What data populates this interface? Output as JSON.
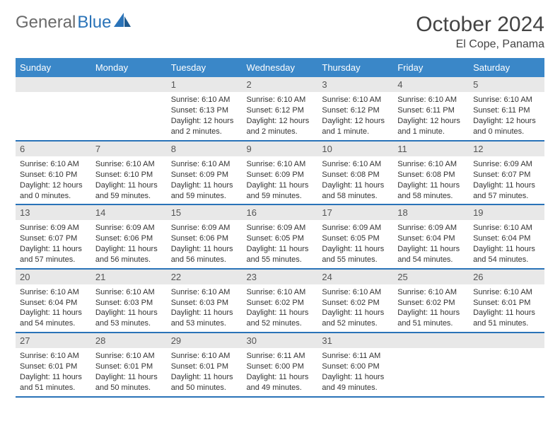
{
  "logo": {
    "part1": "General",
    "part2": "Blue"
  },
  "title": "October 2024",
  "location": "El Cope, Panama",
  "colors": {
    "header_bg": "#3a87c8",
    "header_text": "#ffffff",
    "daynum_bg": "#e8e8e8",
    "border": "#2a73b8",
    "body_text": "#333333",
    "logo_gray": "#6a6a6a",
    "logo_blue": "#2a73b8",
    "background": "#ffffff"
  },
  "typography": {
    "title_fontsize": 30,
    "location_fontsize": 16,
    "dayheader_fontsize": 13,
    "daynum_fontsize": 13,
    "body_fontsize": 11
  },
  "day_headers": [
    "Sunday",
    "Monday",
    "Tuesday",
    "Wednesday",
    "Thursday",
    "Friday",
    "Saturday"
  ],
  "weeks": [
    [
      {
        "n": "",
        "sr": "",
        "ss": "",
        "dl": ""
      },
      {
        "n": "",
        "sr": "",
        "ss": "",
        "dl": ""
      },
      {
        "n": "1",
        "sr": "Sunrise: 6:10 AM",
        "ss": "Sunset: 6:13 PM",
        "dl": "Daylight: 12 hours and 2 minutes."
      },
      {
        "n": "2",
        "sr": "Sunrise: 6:10 AM",
        "ss": "Sunset: 6:12 PM",
        "dl": "Daylight: 12 hours and 2 minutes."
      },
      {
        "n": "3",
        "sr": "Sunrise: 6:10 AM",
        "ss": "Sunset: 6:12 PM",
        "dl": "Daylight: 12 hours and 1 minute."
      },
      {
        "n": "4",
        "sr": "Sunrise: 6:10 AM",
        "ss": "Sunset: 6:11 PM",
        "dl": "Daylight: 12 hours and 1 minute."
      },
      {
        "n": "5",
        "sr": "Sunrise: 6:10 AM",
        "ss": "Sunset: 6:11 PM",
        "dl": "Daylight: 12 hours and 0 minutes."
      }
    ],
    [
      {
        "n": "6",
        "sr": "Sunrise: 6:10 AM",
        "ss": "Sunset: 6:10 PM",
        "dl": "Daylight: 12 hours and 0 minutes."
      },
      {
        "n": "7",
        "sr": "Sunrise: 6:10 AM",
        "ss": "Sunset: 6:10 PM",
        "dl": "Daylight: 11 hours and 59 minutes."
      },
      {
        "n": "8",
        "sr": "Sunrise: 6:10 AM",
        "ss": "Sunset: 6:09 PM",
        "dl": "Daylight: 11 hours and 59 minutes."
      },
      {
        "n": "9",
        "sr": "Sunrise: 6:10 AM",
        "ss": "Sunset: 6:09 PM",
        "dl": "Daylight: 11 hours and 59 minutes."
      },
      {
        "n": "10",
        "sr": "Sunrise: 6:10 AM",
        "ss": "Sunset: 6:08 PM",
        "dl": "Daylight: 11 hours and 58 minutes."
      },
      {
        "n": "11",
        "sr": "Sunrise: 6:10 AM",
        "ss": "Sunset: 6:08 PM",
        "dl": "Daylight: 11 hours and 58 minutes."
      },
      {
        "n": "12",
        "sr": "Sunrise: 6:09 AM",
        "ss": "Sunset: 6:07 PM",
        "dl": "Daylight: 11 hours and 57 minutes."
      }
    ],
    [
      {
        "n": "13",
        "sr": "Sunrise: 6:09 AM",
        "ss": "Sunset: 6:07 PM",
        "dl": "Daylight: 11 hours and 57 minutes."
      },
      {
        "n": "14",
        "sr": "Sunrise: 6:09 AM",
        "ss": "Sunset: 6:06 PM",
        "dl": "Daylight: 11 hours and 56 minutes."
      },
      {
        "n": "15",
        "sr": "Sunrise: 6:09 AM",
        "ss": "Sunset: 6:06 PM",
        "dl": "Daylight: 11 hours and 56 minutes."
      },
      {
        "n": "16",
        "sr": "Sunrise: 6:09 AM",
        "ss": "Sunset: 6:05 PM",
        "dl": "Daylight: 11 hours and 55 minutes."
      },
      {
        "n": "17",
        "sr": "Sunrise: 6:09 AM",
        "ss": "Sunset: 6:05 PM",
        "dl": "Daylight: 11 hours and 55 minutes."
      },
      {
        "n": "18",
        "sr": "Sunrise: 6:09 AM",
        "ss": "Sunset: 6:04 PM",
        "dl": "Daylight: 11 hours and 54 minutes."
      },
      {
        "n": "19",
        "sr": "Sunrise: 6:10 AM",
        "ss": "Sunset: 6:04 PM",
        "dl": "Daylight: 11 hours and 54 minutes."
      }
    ],
    [
      {
        "n": "20",
        "sr": "Sunrise: 6:10 AM",
        "ss": "Sunset: 6:04 PM",
        "dl": "Daylight: 11 hours and 54 minutes."
      },
      {
        "n": "21",
        "sr": "Sunrise: 6:10 AM",
        "ss": "Sunset: 6:03 PM",
        "dl": "Daylight: 11 hours and 53 minutes."
      },
      {
        "n": "22",
        "sr": "Sunrise: 6:10 AM",
        "ss": "Sunset: 6:03 PM",
        "dl": "Daylight: 11 hours and 53 minutes."
      },
      {
        "n": "23",
        "sr": "Sunrise: 6:10 AM",
        "ss": "Sunset: 6:02 PM",
        "dl": "Daylight: 11 hours and 52 minutes."
      },
      {
        "n": "24",
        "sr": "Sunrise: 6:10 AM",
        "ss": "Sunset: 6:02 PM",
        "dl": "Daylight: 11 hours and 52 minutes."
      },
      {
        "n": "25",
        "sr": "Sunrise: 6:10 AM",
        "ss": "Sunset: 6:02 PM",
        "dl": "Daylight: 11 hours and 51 minutes."
      },
      {
        "n": "26",
        "sr": "Sunrise: 6:10 AM",
        "ss": "Sunset: 6:01 PM",
        "dl": "Daylight: 11 hours and 51 minutes."
      }
    ],
    [
      {
        "n": "27",
        "sr": "Sunrise: 6:10 AM",
        "ss": "Sunset: 6:01 PM",
        "dl": "Daylight: 11 hours and 51 minutes."
      },
      {
        "n": "28",
        "sr": "Sunrise: 6:10 AM",
        "ss": "Sunset: 6:01 PM",
        "dl": "Daylight: 11 hours and 50 minutes."
      },
      {
        "n": "29",
        "sr": "Sunrise: 6:10 AM",
        "ss": "Sunset: 6:01 PM",
        "dl": "Daylight: 11 hours and 50 minutes."
      },
      {
        "n": "30",
        "sr": "Sunrise: 6:11 AM",
        "ss": "Sunset: 6:00 PM",
        "dl": "Daylight: 11 hours and 49 minutes."
      },
      {
        "n": "31",
        "sr": "Sunrise: 6:11 AM",
        "ss": "Sunset: 6:00 PM",
        "dl": "Daylight: 11 hours and 49 minutes."
      },
      {
        "n": "",
        "sr": "",
        "ss": "",
        "dl": ""
      },
      {
        "n": "",
        "sr": "",
        "ss": "",
        "dl": ""
      }
    ]
  ]
}
